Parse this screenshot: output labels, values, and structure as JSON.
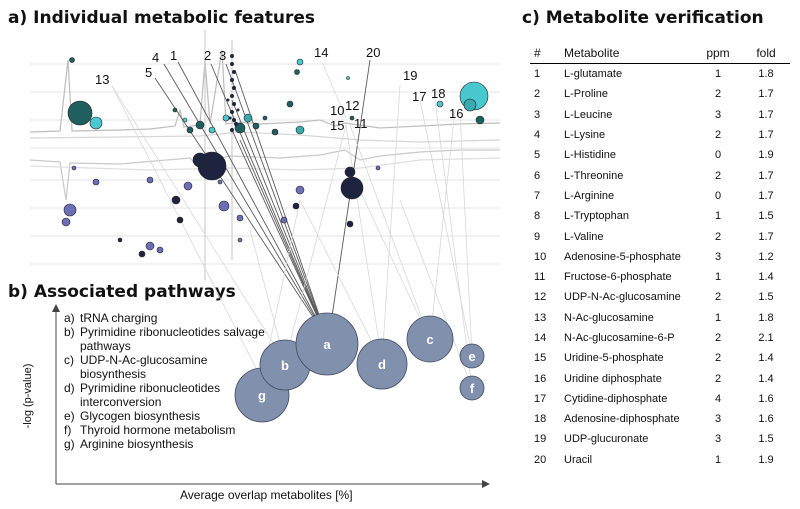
{
  "panel_a": {
    "title": "a) Individual metabolic features",
    "feature_labels": [
      {
        "id": "1",
        "text": "1"
      },
      {
        "id": "2",
        "text": "2"
      },
      {
        "id": "3",
        "text": "3"
      },
      {
        "id": "4",
        "text": "4"
      },
      {
        "id": "5",
        "text": "5"
      },
      {
        "id": "10",
        "text": "10"
      },
      {
        "id": "11",
        "text": "11"
      },
      {
        "id": "12",
        "text": "12"
      },
      {
        "id": "13",
        "text": "13"
      },
      {
        "id": "14",
        "text": "14"
      },
      {
        "id": "15",
        "text": "15"
      },
      {
        "id": "16",
        "text": "16"
      },
      {
        "id": "17",
        "text": "17"
      },
      {
        "id": "18",
        "text": "18"
      },
      {
        "id": "19",
        "text": "19"
      },
      {
        "id": "20",
        "text": "20"
      }
    ],
    "colors": {
      "teal_dark": "#1f5f60",
      "teal_light": "#49c8cf",
      "navy": "#1e2440",
      "purple": "#6c6fb8",
      "spectrum": "#bdbdbd"
    }
  },
  "panel_b": {
    "title": "b) Associated pathways",
    "ylabel": "-log (p-value)",
    "xlabel": "Average overlap metabolites [%]",
    "pathways": [
      {
        "key": "a)",
        "name": "tRNA charging"
      },
      {
        "key": "b)",
        "name": "Pyrimidine ribonucleotides salvage pathways"
      },
      {
        "key": "c)",
        "name": "UDP-N-Ac-glucosamine biosynthesis"
      },
      {
        "key": "d)",
        "name": "Pyrimidine ribonucleotides interconversion"
      },
      {
        "key": "e)",
        "name": "Glycogen biosynthesis"
      },
      {
        "key": "f)",
        "name": "Thyroid hormone metabolism"
      },
      {
        "key": "g)",
        "name": "Arginine biosynthesis"
      }
    ],
    "bubbles": [
      {
        "label": "a"
      },
      {
        "label": "b"
      },
      {
        "label": "c"
      },
      {
        "label": "d"
      },
      {
        "label": "e"
      },
      {
        "label": "f"
      },
      {
        "label": "g"
      }
    ],
    "bubble_color": "#8190ad"
  },
  "panel_c": {
    "title": "c) Metabolite verification",
    "columns": [
      "#",
      "Metabolite",
      "ppm",
      "fold"
    ],
    "rows": [
      [
        "1",
        "L-glutamate",
        "1",
        "1.8"
      ],
      [
        "2",
        "L-Proline",
        "2",
        "1.7"
      ],
      [
        "3",
        "L-Leucine",
        "3",
        "1.7"
      ],
      [
        "4",
        "L-Lysine",
        "2",
        "1.7"
      ],
      [
        "5",
        "L-Histidine",
        "0",
        "1.9"
      ],
      [
        "6",
        "L-Threonine",
        "2",
        "1.7"
      ],
      [
        "7",
        "L-Arginine",
        "0",
        "1.7"
      ],
      [
        "8",
        "L-Tryptophan",
        "1",
        "1.5"
      ],
      [
        "9",
        "L-Valine",
        "2",
        "1.7"
      ],
      [
        "10",
        "Adenosine-5-phosphate",
        "3",
        "1.2"
      ],
      [
        "11",
        "Fructose-6-phosphate",
        "1",
        "1.4"
      ],
      [
        "12",
        "UDP-N-Ac-glucosamine",
        "2",
        "1.5"
      ],
      [
        "13",
        "N-Ac-glucosamine",
        "1",
        "1.8"
      ],
      [
        "14",
        "N-Ac-glucosamine-6-P",
        "2",
        "2.1"
      ],
      [
        "15",
        "Uridine-5-phosphate",
        "2",
        "1.4"
      ],
      [
        "16",
        "Uridine diphosphate",
        "2",
        "1.4"
      ],
      [
        "17",
        "Cytidine-diphosphate",
        "4",
        "1.6"
      ],
      [
        "18",
        "Adenosine-diphosphate",
        "3",
        "1.6"
      ],
      [
        "19",
        "UDP-glucuronate",
        "3",
        "1.5"
      ],
      [
        "20",
        "Uracil",
        "1",
        "1.9"
      ]
    ]
  }
}
